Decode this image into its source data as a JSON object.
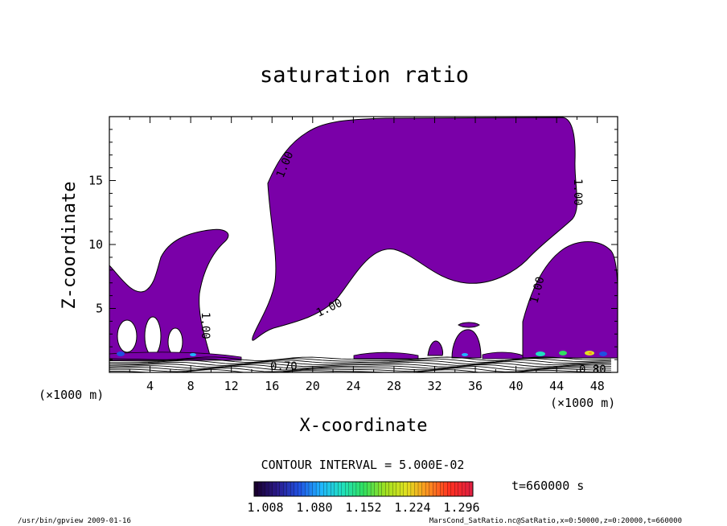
{
  "chart_data": {
    "type": "contour",
    "title": "saturation ratio",
    "xlabel": "X-coordinate",
    "ylabel": "Z-coordinate",
    "x_unit": "(×1000 m)",
    "y_unit": "(×1000 m)",
    "xlim": [
      0,
      50
    ],
    "ylim": [
      0,
      20
    ],
    "x_ticks": [
      "4",
      "8",
      "12",
      "16",
      "20",
      "24",
      "28",
      "32",
      "36",
      "40",
      "44",
      "48"
    ],
    "y_ticks": [
      "5",
      "10",
      "15"
    ],
    "contour_interval": "CONTOUR INTERVAL = 5.000E-02",
    "contour_labels": [
      "1.00",
      "1.00",
      "1.00",
      "1.00",
      "1.00",
      "1.00",
      "0.70",
      "0.80"
    ],
    "shaded_region_color": "#7a00a8",
    "colorbar": {
      "ticks": [
        "1.008",
        "1.080",
        "1.152",
        "1.224",
        "1.296"
      ],
      "colors": [
        "#1a0030",
        "#2a1a8c",
        "#2050e0",
        "#20b4ff",
        "#20e0c0",
        "#30e060",
        "#a0e020",
        "#e0e020",
        "#ff9020",
        "#ff3020",
        "#e02040"
      ]
    },
    "time_label": "t=660000 s",
    "grid": false,
    "legend": "colorbar bottom-center"
  },
  "footer": {
    "left": "/usr/bin/gpview  2009-01-16",
    "right": "MarsCond_SatRatio.nc@SatRatio,x=0:50000,z=0:20000,t=660000"
  }
}
